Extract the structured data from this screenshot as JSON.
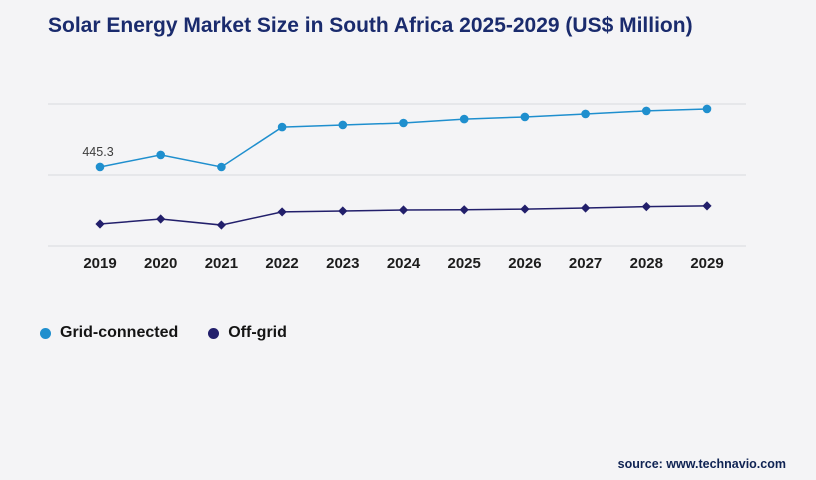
{
  "chart_data": {
    "type": "line",
    "title": "Solar Energy Market Size in South Africa 2025-2029 (US$ Million)",
    "categories": [
      "2019",
      "2020",
      "2021",
      "2022",
      "2023",
      "2024",
      "2025",
      "2026",
      "2027",
      "2028",
      "2029"
    ],
    "series": [
      {
        "name": "Grid-connected",
        "color": "#1f8fce",
        "marker": "circle",
        "values": [
          445.3,
          513,
          445,
          670,
          682,
          693,
          715,
          727,
          744,
          761,
          772
        ]
      },
      {
        "name": "Off-grid",
        "color": "#221f6b",
        "marker": "diamond",
        "values": [
          124,
          152,
          118,
          192,
          197,
          203,
          204,
          208,
          214,
          222,
          226
        ]
      }
    ],
    "annotations": [
      {
        "series": 0,
        "index": 0,
        "text": "445.3"
      }
    ],
    "ylim": [
      0,
      800
    ],
    "gridline_values": [
      0,
      400,
      800
    ],
    "grid": true,
    "legend_position": "bottom-left",
    "xlabel": "",
    "ylabel": ""
  },
  "source": {
    "label": "source: www.technavio.com"
  },
  "theme": {
    "background": "#f4f4f6",
    "title_color": "#1a2b6d",
    "text_color": "#1c1c1c",
    "grid_color": "#d9dadd",
    "annotation_color": "#3c3c3c",
    "source_color": "#0f2353",
    "legend_text_color": "#141414"
  }
}
